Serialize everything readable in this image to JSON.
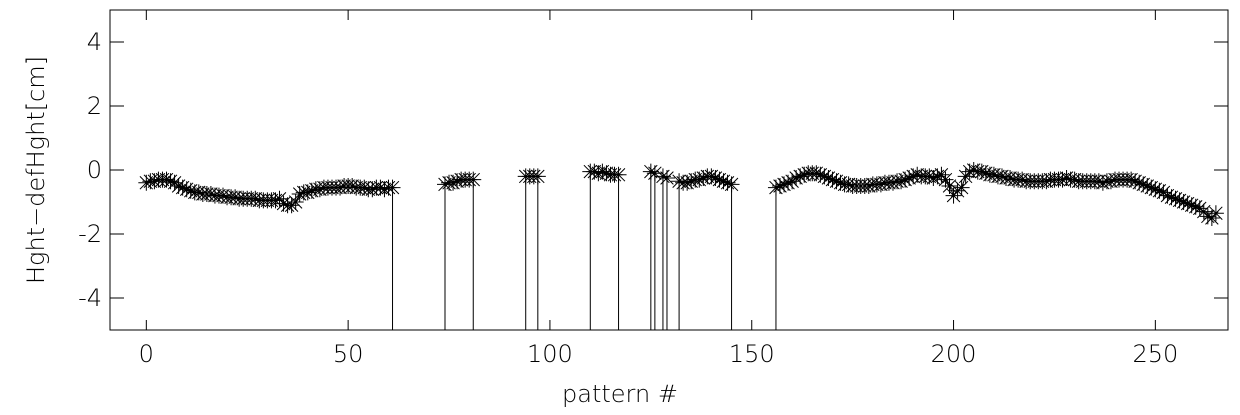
{
  "chart_data": {
    "type": "line",
    "marker": "asterisk",
    "color": "#000000",
    "xlabel": "pattern #",
    "ylabel": "Hght−defHght[cm]",
    "xlim": [
      -9,
      268
    ],
    "ylim": [
      -5,
      5
    ],
    "xticks": [
      0,
      50,
      100,
      150,
      200,
      250
    ],
    "yticks": [
      -4,
      -2,
      0,
      2,
      4
    ],
    "x": [
      0,
      1,
      2,
      3,
      4,
      5,
      6,
      7,
      8,
      9,
      10,
      11,
      12,
      13,
      14,
      15,
      16,
      17,
      18,
      19,
      20,
      21,
      22,
      23,
      24,
      25,
      26,
      27,
      28,
      29,
      30,
      31,
      32,
      33,
      34,
      35,
      36,
      37,
      38,
      39,
      40,
      41,
      42,
      43,
      44,
      45,
      46,
      47,
      48,
      49,
      50,
      51,
      52,
      53,
      54,
      55,
      56,
      57,
      58,
      59,
      60,
      61,
      62,
      63,
      64,
      65,
      66,
      67,
      68,
      69,
      70,
      71,
      72,
      73,
      74,
      75,
      76,
      77,
      78,
      79,
      80,
      81,
      82,
      83,
      84,
      85,
      86,
      87,
      88,
      89,
      90,
      91,
      92,
      93,
      94,
      95,
      96,
      97,
      98,
      99,
      100,
      101,
      102,
      103,
      104,
      105,
      106,
      107,
      108,
      109,
      110,
      111,
      112,
      113,
      114,
      115,
      116,
      117,
      118,
      119,
      120,
      121,
      122,
      123,
      124,
      125,
      126,
      127,
      128,
      129,
      130,
      131,
      132,
      133,
      134,
      135,
      136,
      137,
      138,
      139,
      140,
      141,
      142,
      143,
      144,
      145,
      146,
      147,
      148,
      149,
      150,
      151,
      152,
      153,
      154,
      155,
      156,
      157,
      158,
      159,
      160,
      161,
      162,
      163,
      164,
      165,
      166,
      167,
      168,
      169,
      170,
      171,
      172,
      173,
      174,
      175,
      176,
      177,
      178,
      179,
      180,
      181,
      182,
      183,
      184,
      185,
      186,
      187,
      188,
      189,
      190,
      191,
      192,
      193,
      194,
      195,
      196,
      197,
      198,
      199,
      200,
      201,
      202,
      203,
      204,
      205,
      206,
      207,
      208,
      209,
      210,
      211,
      212,
      213,
      214,
      215,
      216,
      217,
      218,
      219,
      220,
      221,
      222,
      223,
      224,
      225,
      226,
      227,
      228,
      229,
      230,
      231,
      232,
      233,
      234,
      235,
      236,
      237,
      238,
      239,
      240,
      241,
      242,
      243,
      244,
      245,
      246,
      247,
      248,
      249,
      250,
      251,
      252,
      253,
      254,
      255,
      256,
      257,
      258,
      259,
      260,
      261,
      262,
      263,
      264,
      265
    ],
    "values": [
      -0.4,
      -0.35,
      -0.35,
      -0.3,
      -0.3,
      -0.3,
      -0.35,
      -0.4,
      -0.5,
      -0.55,
      -0.6,
      -0.65,
      -0.7,
      -0.7,
      -0.75,
      -0.75,
      -0.75,
      -0.8,
      -0.8,
      -0.8,
      -0.85,
      -0.85,
      -0.85,
      -0.9,
      -0.9,
      -0.9,
      -0.9,
      -0.9,
      -0.95,
      -0.95,
      -0.95,
      -0.95,
      -0.95,
      -0.9,
      -1.05,
      -1.1,
      -1.1,
      -1.0,
      -0.75,
      -0.7,
      -0.7,
      -0.65,
      -0.6,
      -0.6,
      -0.55,
      -0.55,
      -0.55,
      -0.55,
      -0.55,
      -0.5,
      -0.5,
      -0.5,
      -0.55,
      -0.55,
      -0.55,
      -0.6,
      -0.6,
      -0.55,
      -0.55,
      -0.6,
      -0.55,
      -0.55,
      null,
      null,
      null,
      null,
      null,
      null,
      null,
      null,
      null,
      null,
      null,
      null,
      -0.45,
      -0.4,
      -0.4,
      -0.35,
      -0.3,
      -0.3,
      -0.3,
      -0.3,
      null,
      null,
      null,
      null,
      null,
      null,
      null,
      null,
      null,
      null,
      null,
      null,
      -0.2,
      -0.2,
      -0.2,
      -0.2,
      null,
      null,
      null,
      null,
      null,
      null,
      null,
      null,
      null,
      null,
      null,
      null,
      -0.05,
      -0.05,
      -0.1,
      -0.05,
      -0.1,
      -0.15,
      -0.15,
      -0.15,
      null,
      null,
      null,
      null,
      null,
      null,
      null,
      -0.05,
      -0.1,
      null,
      -0.2,
      -0.25,
      null,
      null,
      -0.35,
      -0.4,
      -0.4,
      -0.35,
      -0.3,
      -0.3,
      -0.25,
      -0.2,
      -0.2,
      -0.25,
      -0.3,
      -0.35,
      -0.4,
      -0.45,
      null,
      null,
      null,
      null,
      null,
      null,
      null,
      null,
      null,
      null,
      -0.55,
      -0.5,
      -0.45,
      -0.4,
      -0.35,
      -0.25,
      -0.2,
      -0.15,
      -0.1,
      -0.1,
      -0.1,
      -0.15,
      -0.2,
      -0.25,
      -0.3,
      -0.35,
      -0.4,
      -0.45,
      -0.45,
      -0.5,
      -0.5,
      -0.5,
      -0.5,
      -0.5,
      -0.45,
      -0.45,
      -0.45,
      -0.4,
      -0.4,
      -0.4,
      -0.35,
      -0.35,
      -0.3,
      -0.25,
      -0.2,
      -0.15,
      -0.2,
      -0.2,
      -0.2,
      -0.25,
      -0.2,
      -0.15,
      -0.3,
      -0.5,
      -0.8,
      -0.65,
      -0.55,
      -0.2,
      -0.05,
      0,
      -0.05,
      -0.05,
      -0.1,
      -0.15,
      -0.15,
      -0.2,
      -0.2,
      -0.25,
      -0.25,
      -0.3,
      -0.3,
      -0.3,
      -0.35,
      -0.35,
      -0.35,
      -0.35,
      -0.35,
      -0.35,
      -0.3,
      -0.3,
      -0.3,
      -0.3,
      -0.25,
      -0.3,
      -0.3,
      -0.35,
      -0.35,
      -0.35,
      -0.35,
      -0.35,
      -0.35,
      -0.4,
      -0.35,
      -0.35,
      -0.3,
      -0.3,
      -0.3,
      -0.3,
      -0.3,
      -0.35,
      -0.4,
      -0.45,
      -0.5,
      -0.55,
      -0.6,
      -0.65,
      -0.7,
      -0.8,
      -0.85,
      -0.9,
      -0.95,
      -1.0,
      -1.05,
      -1.1,
      -1.15,
      -1.2,
      -1.3,
      -1.45,
      -1.5,
      -1.35
    ]
  }
}
